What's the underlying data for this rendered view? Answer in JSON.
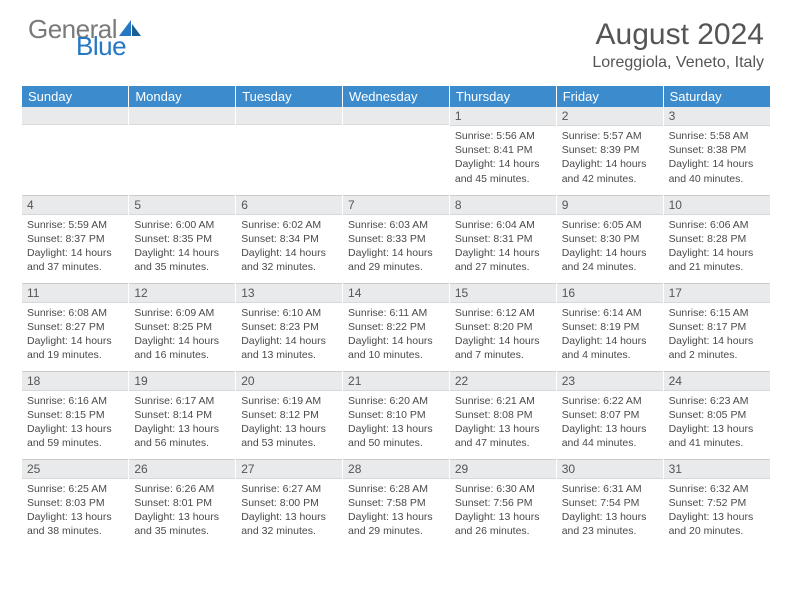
{
  "logo": {
    "part1": "General",
    "part2": "Blue"
  },
  "title": "August 2024",
  "location": "Loreggiola, Veneto, Italy",
  "colors": {
    "header_bg": "#3b8bcd",
    "header_fg": "#ffffff",
    "daynum_bg": "#e9eaeb",
    "text": "#4a4a4a",
    "logo_gray": "#7a7a7a",
    "logo_blue": "#2478c4"
  },
  "day_headers": [
    "Sunday",
    "Monday",
    "Tuesday",
    "Wednesday",
    "Thursday",
    "Friday",
    "Saturday"
  ],
  "weeks": [
    [
      {
        "day": "",
        "lines": []
      },
      {
        "day": "",
        "lines": []
      },
      {
        "day": "",
        "lines": []
      },
      {
        "day": "",
        "lines": []
      },
      {
        "day": "1",
        "lines": [
          "Sunrise: 5:56 AM",
          "Sunset: 8:41 PM",
          "Daylight: 14 hours and 45 minutes."
        ]
      },
      {
        "day": "2",
        "lines": [
          "Sunrise: 5:57 AM",
          "Sunset: 8:39 PM",
          "Daylight: 14 hours and 42 minutes."
        ]
      },
      {
        "day": "3",
        "lines": [
          "Sunrise: 5:58 AM",
          "Sunset: 8:38 PM",
          "Daylight: 14 hours and 40 minutes."
        ]
      }
    ],
    [
      {
        "day": "4",
        "lines": [
          "Sunrise: 5:59 AM",
          "Sunset: 8:37 PM",
          "Daylight: 14 hours and 37 minutes."
        ]
      },
      {
        "day": "5",
        "lines": [
          "Sunrise: 6:00 AM",
          "Sunset: 8:35 PM",
          "Daylight: 14 hours and 35 minutes."
        ]
      },
      {
        "day": "6",
        "lines": [
          "Sunrise: 6:02 AM",
          "Sunset: 8:34 PM",
          "Daylight: 14 hours and 32 minutes."
        ]
      },
      {
        "day": "7",
        "lines": [
          "Sunrise: 6:03 AM",
          "Sunset: 8:33 PM",
          "Daylight: 14 hours and 29 minutes."
        ]
      },
      {
        "day": "8",
        "lines": [
          "Sunrise: 6:04 AM",
          "Sunset: 8:31 PM",
          "Daylight: 14 hours and 27 minutes."
        ]
      },
      {
        "day": "9",
        "lines": [
          "Sunrise: 6:05 AM",
          "Sunset: 8:30 PM",
          "Daylight: 14 hours and 24 minutes."
        ]
      },
      {
        "day": "10",
        "lines": [
          "Sunrise: 6:06 AM",
          "Sunset: 8:28 PM",
          "Daylight: 14 hours and 21 minutes."
        ]
      }
    ],
    [
      {
        "day": "11",
        "lines": [
          "Sunrise: 6:08 AM",
          "Sunset: 8:27 PM",
          "Daylight: 14 hours and 19 minutes."
        ]
      },
      {
        "day": "12",
        "lines": [
          "Sunrise: 6:09 AM",
          "Sunset: 8:25 PM",
          "Daylight: 14 hours and 16 minutes."
        ]
      },
      {
        "day": "13",
        "lines": [
          "Sunrise: 6:10 AM",
          "Sunset: 8:23 PM",
          "Daylight: 14 hours and 13 minutes."
        ]
      },
      {
        "day": "14",
        "lines": [
          "Sunrise: 6:11 AM",
          "Sunset: 8:22 PM",
          "Daylight: 14 hours and 10 minutes."
        ]
      },
      {
        "day": "15",
        "lines": [
          "Sunrise: 6:12 AM",
          "Sunset: 8:20 PM",
          "Daylight: 14 hours and 7 minutes."
        ]
      },
      {
        "day": "16",
        "lines": [
          "Sunrise: 6:14 AM",
          "Sunset: 8:19 PM",
          "Daylight: 14 hours and 4 minutes."
        ]
      },
      {
        "day": "17",
        "lines": [
          "Sunrise: 6:15 AM",
          "Sunset: 8:17 PM",
          "Daylight: 14 hours and 2 minutes."
        ]
      }
    ],
    [
      {
        "day": "18",
        "lines": [
          "Sunrise: 6:16 AM",
          "Sunset: 8:15 PM",
          "Daylight: 13 hours and 59 minutes."
        ]
      },
      {
        "day": "19",
        "lines": [
          "Sunrise: 6:17 AM",
          "Sunset: 8:14 PM",
          "Daylight: 13 hours and 56 minutes."
        ]
      },
      {
        "day": "20",
        "lines": [
          "Sunrise: 6:19 AM",
          "Sunset: 8:12 PM",
          "Daylight: 13 hours and 53 minutes."
        ]
      },
      {
        "day": "21",
        "lines": [
          "Sunrise: 6:20 AM",
          "Sunset: 8:10 PM",
          "Daylight: 13 hours and 50 minutes."
        ]
      },
      {
        "day": "22",
        "lines": [
          "Sunrise: 6:21 AM",
          "Sunset: 8:08 PM",
          "Daylight: 13 hours and 47 minutes."
        ]
      },
      {
        "day": "23",
        "lines": [
          "Sunrise: 6:22 AM",
          "Sunset: 8:07 PM",
          "Daylight: 13 hours and 44 minutes."
        ]
      },
      {
        "day": "24",
        "lines": [
          "Sunrise: 6:23 AM",
          "Sunset: 8:05 PM",
          "Daylight: 13 hours and 41 minutes."
        ]
      }
    ],
    [
      {
        "day": "25",
        "lines": [
          "Sunrise: 6:25 AM",
          "Sunset: 8:03 PM",
          "Daylight: 13 hours and 38 minutes."
        ]
      },
      {
        "day": "26",
        "lines": [
          "Sunrise: 6:26 AM",
          "Sunset: 8:01 PM",
          "Daylight: 13 hours and 35 minutes."
        ]
      },
      {
        "day": "27",
        "lines": [
          "Sunrise: 6:27 AM",
          "Sunset: 8:00 PM",
          "Daylight: 13 hours and 32 minutes."
        ]
      },
      {
        "day": "28",
        "lines": [
          "Sunrise: 6:28 AM",
          "Sunset: 7:58 PM",
          "Daylight: 13 hours and 29 minutes."
        ]
      },
      {
        "day": "29",
        "lines": [
          "Sunrise: 6:30 AM",
          "Sunset: 7:56 PM",
          "Daylight: 13 hours and 26 minutes."
        ]
      },
      {
        "day": "30",
        "lines": [
          "Sunrise: 6:31 AM",
          "Sunset: 7:54 PM",
          "Daylight: 13 hours and 23 minutes."
        ]
      },
      {
        "day": "31",
        "lines": [
          "Sunrise: 6:32 AM",
          "Sunset: 7:52 PM",
          "Daylight: 13 hours and 20 minutes."
        ]
      }
    ]
  ]
}
